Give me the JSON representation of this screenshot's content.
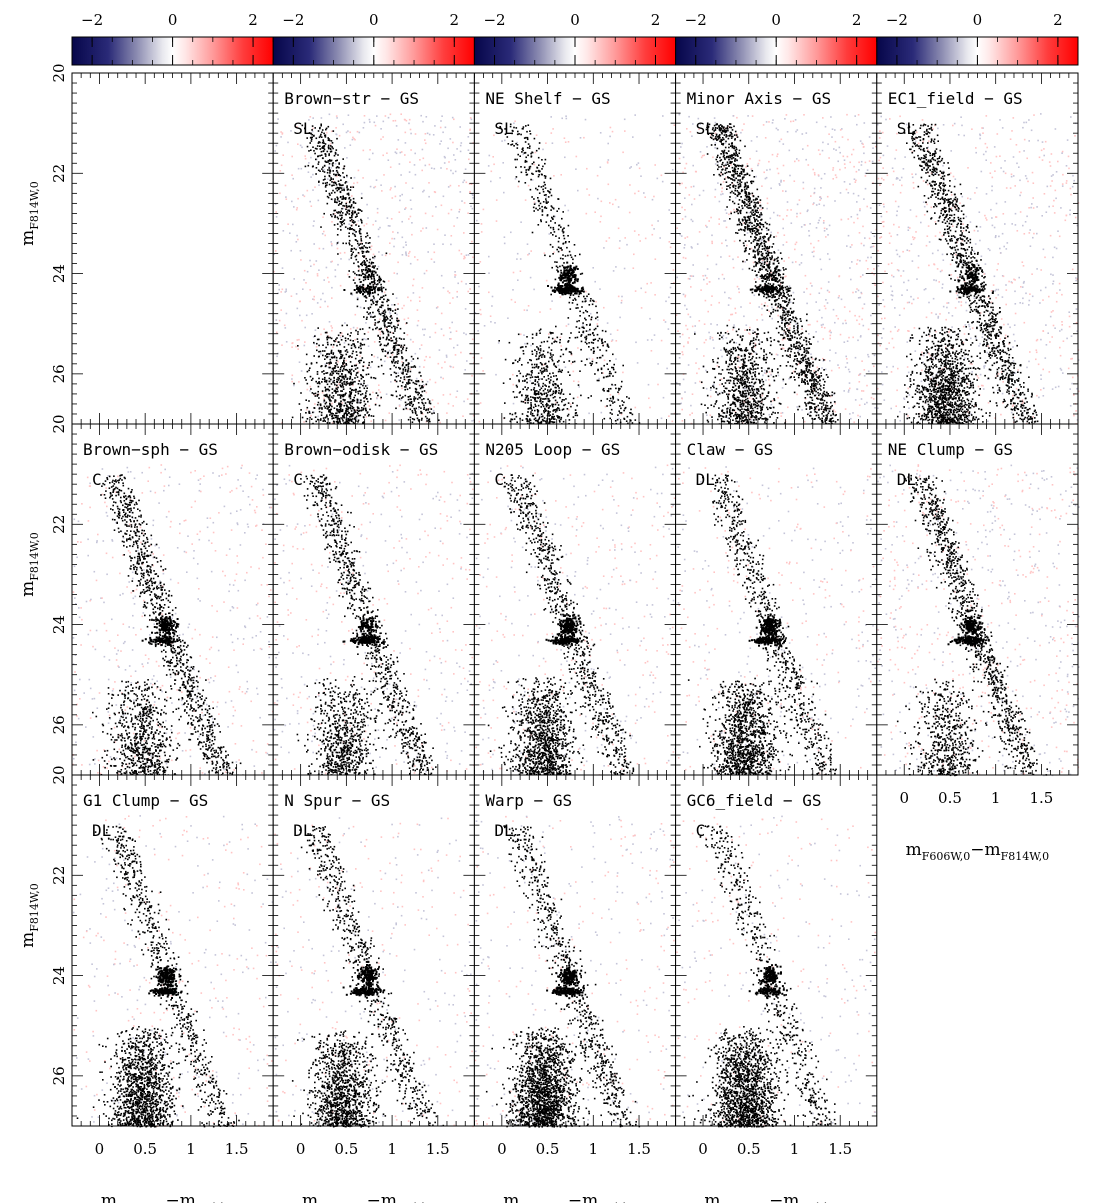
{
  "chart_data": {
    "type": "heatmap",
    "description_kind": "Hess-diagram difference panels",
    "colorbar": {
      "range": [
        -2.5,
        2.5
      ],
      "ticks": [
        "−2",
        "0",
        "2"
      ],
      "tick_values": [
        -2,
        0,
        2
      ],
      "colors": {
        "low": "#0a0a60",
        "mid": "#ffffff",
        "high": "#ff0000"
      }
    },
    "axes": {
      "xlabel": {
        "main": "m",
        "sub1": "F606W,0",
        "minus": "−m",
        "sub2": "F814W,0"
      },
      "ylabel": {
        "main": "m",
        "sub": "F814W,0"
      },
      "xlim": [
        -0.3,
        1.9
      ],
      "ylim": [
        27.0,
        20.0
      ],
      "xticks": [
        "0",
        "0.5",
        "1",
        "1.5"
      ],
      "xtick_values": [
        0,
        0.5,
        1,
        1.5
      ],
      "yticks": [
        "20",
        "22",
        "24",
        "26"
      ],
      "ytick_values": [
        20,
        22,
        24,
        26
      ],
      "first_row_top_ytick_label": "20"
    },
    "panels": [
      {
        "row": 0,
        "col": 0,
        "title": "",
        "tag": "",
        "empty": true
      },
      {
        "row": 0,
        "col": 1,
        "title": "Brown−str − GS",
        "tag": "SL",
        "rc_red": 0.15,
        "rc_blue": 0.35,
        "rgb_red": 0.55,
        "rgb_blue": 0.55,
        "ms_red": 0.5,
        "noise": 0.9
      },
      {
        "row": 0,
        "col": 2,
        "title": "NE Shelf − GS",
        "tag": "SL",
        "rc_red": 0.7,
        "rc_blue": 1.0,
        "rgb_red": 0.25,
        "rgb_blue": 0.3,
        "ms_red": 0.35,
        "noise": 0.35
      },
      {
        "row": 0,
        "col": 3,
        "title": "Minor Axis − GS",
        "tag": "SL",
        "rc_red": 0.2,
        "rc_blue": 0.6,
        "rgb_red": 0.7,
        "rgb_blue": 0.9,
        "ms_red": 0.5,
        "noise": 1.0
      },
      {
        "row": 0,
        "col": 4,
        "title": "EC1_field − GS",
        "tag": "SL",
        "rc_red": 0.45,
        "rc_blue": 0.55,
        "rgb_red": 0.75,
        "rgb_blue": 0.45,
        "ms_red": 0.8,
        "noise": 0.85
      },
      {
        "row": 1,
        "col": 0,
        "title": "Brown−sph − GS",
        "tag": "C",
        "rc_red": 0.8,
        "rc_blue": 0.6,
        "rgb_red": 0.6,
        "rgb_blue": 0.45,
        "ms_red": 0.45,
        "noise": 0.6
      },
      {
        "row": 1,
        "col": 1,
        "title": "Brown−odisk − GS",
        "tag": "C",
        "rc_red": 0.5,
        "rc_blue": 0.85,
        "rgb_red": 0.45,
        "rgb_blue": 0.45,
        "ms_red": 0.45,
        "noise": 0.5
      },
      {
        "row": 1,
        "col": 2,
        "title": "N205 Loop − GS",
        "tag": "C",
        "rc_red": 1.0,
        "rc_blue": 0.8,
        "rgb_red": 0.45,
        "rgb_blue": 0.4,
        "ms_red": 0.7,
        "noise": 0.5
      },
      {
        "row": 1,
        "col": 3,
        "title": "Claw − GS",
        "tag": "DL",
        "rc_red": 0.95,
        "rc_blue": 0.85,
        "rgb_red": 0.4,
        "rgb_blue": 0.35,
        "ms_red": 0.75,
        "noise": 0.45
      },
      {
        "row": 1,
        "col": 4,
        "title": "NE Clump − GS",
        "tag": "DL",
        "rc_red": 0.9,
        "rc_blue": 0.9,
        "rgb_red": 0.35,
        "rgb_blue": 0.7,
        "ms_red": 0.35,
        "noise": 0.75
      },
      {
        "row": 2,
        "col": 0,
        "title": "G1 Clump − GS",
        "tag": "DL",
        "rc_red": 0.95,
        "rc_blue": 0.9,
        "rgb_red": 0.3,
        "rgb_blue": 0.4,
        "ms_red": 0.8,
        "noise": 0.4
      },
      {
        "row": 2,
        "col": 1,
        "title": "N Spur − GS",
        "tag": "DL",
        "rc_red": 0.9,
        "rc_blue": 0.85,
        "rgb_red": 0.35,
        "rgb_blue": 0.35,
        "ms_red": 0.7,
        "noise": 0.4
      },
      {
        "row": 2,
        "col": 2,
        "title": "Warp − GS",
        "tag": "DL",
        "rc_red": 0.95,
        "rc_blue": 1.0,
        "rgb_red": 0.35,
        "rgb_blue": 0.4,
        "ms_red": 1.0,
        "noise": 0.4
      },
      {
        "row": 2,
        "col": 3,
        "title": "GC6_field − GS",
        "tag": "C",
        "rc_red": 0.8,
        "rc_blue": 0.55,
        "rgb_red": 0.35,
        "rgb_blue": 0.2,
        "ms_red": 0.95,
        "noise": 0.35
      }
    ]
  }
}
